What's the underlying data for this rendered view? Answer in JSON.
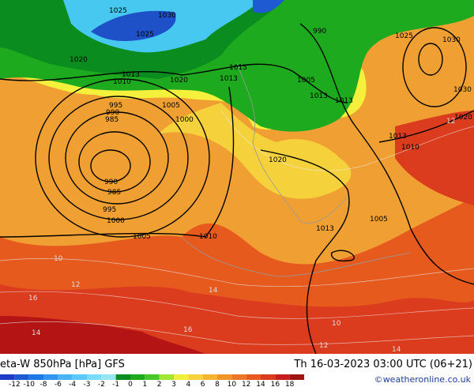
{
  "footer": {
    "title": "eta-W 850hPa [hPa] GFS",
    "datetime": "Th 16-03-2023 03:00 UTC (06+21)",
    "credit": "©weatheronline.co.uk"
  },
  "legend": {
    "labels": [
      "-12",
      "-10",
      "-8",
      "-6",
      "-4",
      "-3",
      "-2",
      "-1",
      "0",
      "1",
      "2",
      "3",
      "4",
      "6",
      "8",
      "10",
      "12",
      "14",
      "16",
      "18"
    ],
    "colors": [
      "#1e3cc8",
      "#1e5ad2",
      "#1e78e6",
      "#3296f0",
      "#46b4f5",
      "#5ac8fa",
      "#78dcfa",
      "#96e6f0",
      "#0a8c1e",
      "#1eaa1e",
      "#46c828",
      "#a0e632",
      "#f0f03c",
      "#f5d23c",
      "#f5b432",
      "#f09628",
      "#eb7828",
      "#e65a1e",
      "#dc3c1e",
      "#c81e1e",
      "#a01414"
    ]
  },
  "pressure_labels": [
    "1025",
    "1030",
    "1025",
    "1020",
    "1020",
    "1013",
    "1010",
    "995",
    "990",
    "985",
    "1005",
    "1000",
    "990",
    "985",
    "995",
    "1000",
    "1005",
    "1010",
    "1013",
    "1015",
    "1020",
    "1005",
    "1013",
    "1005",
    "1025",
    "1030",
    "990",
    "1030",
    "1020",
    "1013",
    "1010",
    "1013",
    "1013"
  ],
  "temperature_labels": [
    "10",
    "12",
    "14",
    "16",
    "14",
    "16",
    "12",
    "14",
    "10",
    "12"
  ]
}
